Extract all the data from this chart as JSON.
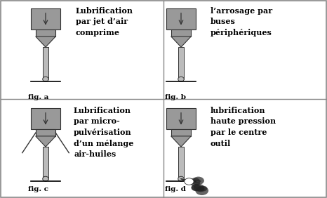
{
  "bg_color": "#f0f0f0",
  "border_color": "#555555",
  "fig_bg": "#ffffff",
  "labels": {
    "a": "Lubrification\npar jet d’air\ncomprime",
    "b": "l’arrosage par\nbuses\npériphériques",
    "c": "Lubrification\npar micro-\npulvérisation\nd’un mélange\nair-huiles",
    "d": "lubrification\nhaute pression\npar le centre\noutil"
  },
  "fig_labels": {
    "a": "fig. a",
    "b": "fig. b",
    "c": "fig. c",
    "d": "fig. d"
  },
  "tool_fill": "#bbbbbb",
  "tool_edge": "#333333",
  "tool_dark_fill": "#999999",
  "spray_color": "#222222",
  "divider_color": "#888888"
}
